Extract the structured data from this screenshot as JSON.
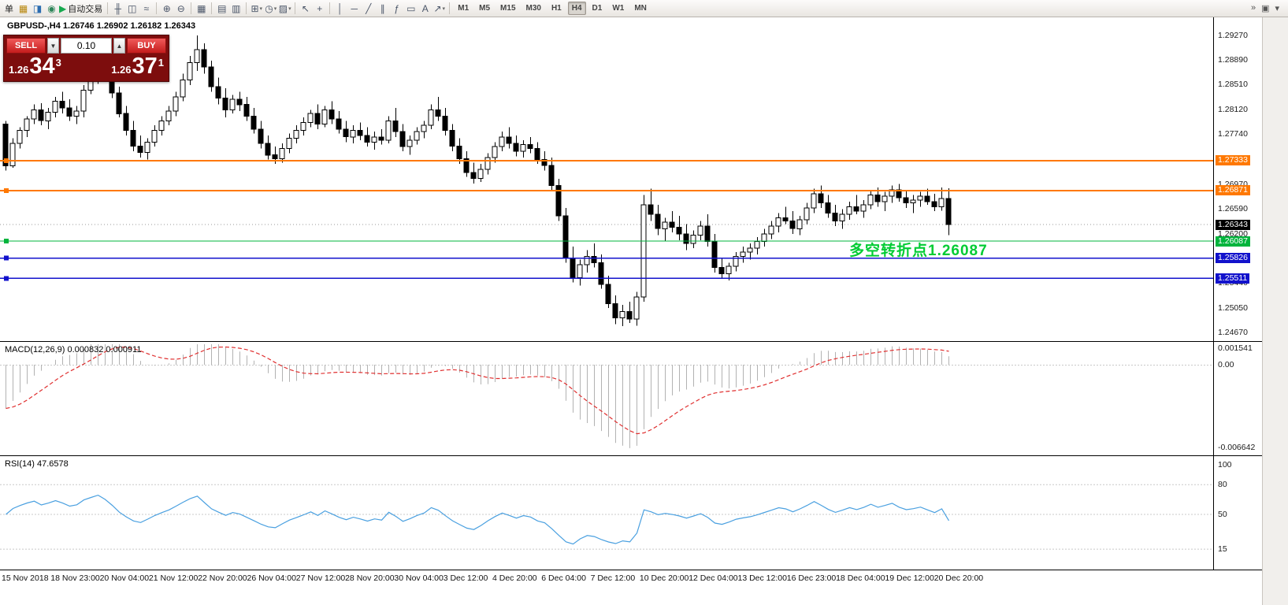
{
  "toolbar": {
    "dropdown_glyph": "▾",
    "items": [
      {
        "name": "new-order-button",
        "label": "单"
      },
      {
        "name": "chart-window-icon",
        "glyph": "▦",
        "glyph_color": "#b8860b"
      },
      {
        "name": "profiles-icon",
        "glyph": "◨",
        "glyph_color": "#2b6cb0"
      },
      {
        "name": "market-watch-icon",
        "glyph": "◉",
        "glyph_color": "#2f855a"
      },
      {
        "name": "autotrading-button",
        "glyph": "▶",
        "glyph_color": "#17a94f",
        "label": "自动交易"
      },
      {
        "sep": true
      },
      {
        "name": "bar-chart-icon",
        "glyph": "╫"
      },
      {
        "name": "candlestick-icon",
        "glyph": "◫"
      },
      {
        "name": "line-chart-icon",
        "glyph": "≈"
      },
      {
        "sep": true
      },
      {
        "name": "zoom-in-icon",
        "glyph": "⊕"
      },
      {
        "name": "zoom-out-icon",
        "glyph": "⊖"
      },
      {
        "sep": true
      },
      {
        "name": "tile-windows-icon",
        "glyph": "▦"
      },
      {
        "sep": true
      },
      {
        "name": "arrange-windows-icon",
        "glyph": "▤"
      },
      {
        "name": "cascade-windows-icon",
        "glyph": "▥"
      },
      {
        "sep": true
      },
      {
        "name": "new-chart-icon",
        "glyph": "⊞",
        "dropdown": true
      },
      {
        "name": "period-icon",
        "glyph": "◷",
        "dropdown": true
      },
      {
        "name": "template-icon",
        "glyph": "▨",
        "dropdown": true
      },
      {
        "sep": true
      },
      {
        "name": "cursor-icon",
        "glyph": "↖"
      },
      {
        "name": "crosshair-icon",
        "glyph": "+"
      },
      {
        "sep": true
      },
      {
        "name": "vertical-line-icon",
        "glyph": "│"
      },
      {
        "name": "horizontal-line-icon",
        "glyph": "─"
      },
      {
        "name": "trendline-icon",
        "glyph": "╱"
      },
      {
        "name": "channel-icon",
        "glyph": "∥"
      },
      {
        "name": "fibonacci-icon",
        "glyph": "ƒ"
      },
      {
        "name": "shapes-icon",
        "glyph": "▭"
      },
      {
        "name": "text-icon",
        "glyph": "A"
      },
      {
        "name": "arrow-tools-icon",
        "glyph": "↗",
        "dropdown": true
      },
      {
        "sep": true
      }
    ],
    "timeframes": [
      {
        "label": "M1"
      },
      {
        "label": "M5"
      },
      {
        "label": "M15"
      },
      {
        "label": "M30"
      },
      {
        "label": "H1"
      },
      {
        "label": "H4",
        "active": true
      },
      {
        "label": "D1"
      },
      {
        "label": "W1"
      },
      {
        "label": "MN"
      }
    ],
    "right_icons": [
      {
        "name": "toolbars-overflow-icon",
        "glyph": "»"
      },
      {
        "name": "dock-window-icon",
        "glyph": "▣"
      },
      {
        "name": "collapse-panel-icon",
        "glyph": "▾"
      }
    ]
  },
  "chart": {
    "title": "GBPUSD-,H4 1.26746 1.26902 1.26182 1.26343",
    "one_click": {
      "sell_label": "SELL",
      "buy_label": "BUY",
      "volume": "0.10",
      "down_glyph": "▼",
      "up_glyph": "▲",
      "sell_price": {
        "prefix": "1.26",
        "big": "34",
        "sup": "3"
      },
      "buy_price": {
        "prefix": "1.26",
        "big": "37",
        "sup": "1"
      }
    },
    "annotation": {
      "text": "多空转折点1.26087",
      "color": "#00cc33"
    }
  },
  "chart_data": {
    "type": "candlestick",
    "symbol": "GBPUSD-",
    "timeframe": "H4",
    "y_range": [
      1.2454,
      1.2955
    ],
    "y_axis_labels": [
      "1.29270",
      "1.28890",
      "1.28510",
      "1.28120",
      "1.27740",
      "1.26970",
      "1.26590",
      "1.26200",
      "1.25440",
      "1.25050",
      "1.24670"
    ],
    "x_labels": [
      "15 Nov 2018",
      "18 Nov 23:00",
      "20 Nov 04:00",
      "21 Nov 12:00",
      "22 Nov 20:00",
      "26 Nov 04:00",
      "27 Nov 12:00",
      "28 Nov 20:00",
      "30 Nov 04:00",
      "3 Dec 12:00",
      "4 Dec 20:00",
      "6 Dec 04:00",
      "7 Dec 12:00",
      "10 Dec 20:00",
      "12 Dec 04:00",
      "13 Dec 12:00",
      "16 Dec 23:00",
      "18 Dec 04:00",
      "19 Dec 12:00",
      "20 Dec 20:00"
    ],
    "horizontal_lines": [
      {
        "price": 1.27333,
        "label": "1.27333",
        "color": "orange",
        "w": 2
      },
      {
        "price": 1.26871,
        "label": "1.26871",
        "color": "orange",
        "w": 2
      },
      {
        "price": 1.26087,
        "label": "1.26087",
        "color": "green",
        "w": 1.3
      },
      {
        "price": 1.25826,
        "label": "1.25826",
        "color": "blue",
        "w": 1.5
      },
      {
        "price": 1.25511,
        "label": "1.25511",
        "color": "blue",
        "w": 1.5
      }
    ],
    "current_price": {
      "price": 1.26343,
      "label": "1.26343",
      "color": "black"
    },
    "colors": {
      "up": "#ffffff",
      "down": "#000000",
      "wick": "#000000",
      "orange": "#ff7800",
      "green": "#00b43c",
      "blue": "#1212cc",
      "black": "#000000",
      "macd_hist": "#b2b2b2",
      "macd_signal": "#e03030",
      "rsi_line": "#4aa0e0",
      "level_line": "#c8c8c8",
      "bid_line": "#9a9a9a"
    },
    "indicators": [
      {
        "type": "MACD",
        "label": "MACD(12,26,9) 0.000832 0.000911",
        "params": [
          12,
          26,
          9
        ],
        "values": [
          0.000832,
          0.000911
        ],
        "axis_labels": [
          "0.001541",
          "0.00",
          "-0.006642"
        ]
      },
      {
        "type": "RSI",
        "label": "RSI(14) 47.6578",
        "params": [
          14
        ],
        "value": 47.6578,
        "axis_labels": [
          "100",
          "80",
          "50",
          "15"
        ],
        "levels": [
          80,
          50,
          15
        ]
      }
    ],
    "ohlc": [
      [
        1.279,
        1.2795,
        1.2718,
        1.2725
      ],
      [
        1.2725,
        1.2768,
        1.2722,
        1.276
      ],
      [
        1.276,
        1.2785,
        1.2752,
        1.278
      ],
      [
        1.278,
        1.2802,
        1.277,
        1.2798
      ],
      [
        1.2798,
        1.282,
        1.279,
        1.2812
      ],
      [
        1.2812,
        1.2822,
        1.2788,
        1.2795
      ],
      [
        1.2795,
        1.2815,
        1.2782,
        1.2808
      ],
      [
        1.2808,
        1.2832,
        1.28,
        1.2825
      ],
      [
        1.2825,
        1.284,
        1.2806,
        1.2815
      ],
      [
        1.2815,
        1.2828,
        1.2795,
        1.2802
      ],
      [
        1.2802,
        1.2818,
        1.279,
        1.281
      ],
      [
        1.281,
        1.285,
        1.28,
        1.2842
      ],
      [
        1.2842,
        1.287,
        1.2836,
        1.286
      ],
      [
        1.286,
        1.2888,
        1.2852,
        1.2878
      ],
      [
        1.2878,
        1.289,
        1.2855,
        1.2862
      ],
      [
        1.2862,
        1.2875,
        1.283,
        1.2838
      ],
      [
        1.2838,
        1.2848,
        1.28,
        1.2806
      ],
      [
        1.2806,
        1.2818,
        1.2772,
        1.278
      ],
      [
        1.278,
        1.2795,
        1.2748,
        1.2756
      ],
      [
        1.2756,
        1.2772,
        1.2738,
        1.2746
      ],
      [
        1.2746,
        1.2768,
        1.2735,
        1.2762
      ],
      [
        1.2762,
        1.2788,
        1.2755,
        1.278
      ],
      [
        1.278,
        1.2802,
        1.2772,
        1.2795
      ],
      [
        1.2795,
        1.2818,
        1.2788,
        1.281
      ],
      [
        1.281,
        1.284,
        1.2802,
        1.2832
      ],
      [
        1.2832,
        1.2868,
        1.2825,
        1.2858
      ],
      [
        1.2858,
        1.2895,
        1.285,
        1.2885
      ],
      [
        1.2885,
        1.2927,
        1.2872,
        1.2905
      ],
      [
        1.2905,
        1.2915,
        1.2868,
        1.2878
      ],
      [
        1.2878,
        1.2888,
        1.284,
        1.2848
      ],
      [
        1.2848,
        1.2862,
        1.282,
        1.283
      ],
      [
        1.283,
        1.2845,
        1.28,
        1.2812
      ],
      [
        1.2812,
        1.2835,
        1.2806,
        1.2828
      ],
      [
        1.2828,
        1.284,
        1.281,
        1.282
      ],
      [
        1.282,
        1.2832,
        1.2795,
        1.2802
      ],
      [
        1.2802,
        1.2815,
        1.2775,
        1.2782
      ],
      [
        1.2782,
        1.2795,
        1.2752,
        1.276
      ],
      [
        1.276,
        1.2772,
        1.2735,
        1.2742
      ],
      [
        1.2742,
        1.2755,
        1.2728,
        1.2736
      ],
      [
        1.2736,
        1.276,
        1.273,
        1.2752
      ],
      [
        1.2752,
        1.2775,
        1.2745,
        1.2768
      ],
      [
        1.2768,
        1.2788,
        1.276,
        1.278
      ],
      [
        1.278,
        1.28,
        1.2772,
        1.2792
      ],
      [
        1.2792,
        1.2812,
        1.2785,
        1.2806
      ],
      [
        1.2806,
        1.282,
        1.2782,
        1.279
      ],
      [
        1.279,
        1.2818,
        1.2785,
        1.2812
      ],
      [
        1.2812,
        1.2825,
        1.279,
        1.2798
      ],
      [
        1.2798,
        1.281,
        1.2775,
        1.2782
      ],
      [
        1.2782,
        1.2795,
        1.2762,
        1.277
      ],
      [
        1.277,
        1.2788,
        1.276,
        1.278
      ],
      [
        1.278,
        1.2792,
        1.2765,
        1.2772
      ],
      [
        1.2772,
        1.2785,
        1.2755,
        1.2762
      ],
      [
        1.2762,
        1.2778,
        1.275,
        1.277
      ],
      [
        1.277,
        1.2782,
        1.2758,
        1.2765
      ],
      [
        1.2765,
        1.2802,
        1.276,
        1.2795
      ],
      [
        1.2795,
        1.2815,
        1.277,
        1.2778
      ],
      [
        1.2778,
        1.279,
        1.2748,
        1.2755
      ],
      [
        1.2755,
        1.2772,
        1.2742,
        1.2765
      ],
      [
        1.2765,
        1.2785,
        1.2758,
        1.2778
      ],
      [
        1.2778,
        1.2795,
        1.2768,
        1.2788
      ],
      [
        1.2788,
        1.282,
        1.2782,
        1.2812
      ],
      [
        1.2812,
        1.2832,
        1.2795,
        1.2802
      ],
      [
        1.2802,
        1.2815,
        1.2772,
        1.278
      ],
      [
        1.278,
        1.279,
        1.2748,
        1.2756
      ],
      [
        1.2756,
        1.2768,
        1.2728,
        1.2736
      ],
      [
        1.2736,
        1.2748,
        1.2708,
        1.2715
      ],
      [
        1.2715,
        1.273,
        1.2698,
        1.2706
      ],
      [
        1.2706,
        1.2728,
        1.27,
        1.272
      ],
      [
        1.272,
        1.2745,
        1.2712,
        1.2738
      ],
      [
        1.2738,
        1.2762,
        1.273,
        1.2755
      ],
      [
        1.2755,
        1.2778,
        1.2748,
        1.277
      ],
      [
        1.277,
        1.2785,
        1.2752,
        1.276
      ],
      [
        1.276,
        1.2772,
        1.274,
        1.2748
      ],
      [
        1.2748,
        1.2765,
        1.2738,
        1.2758
      ],
      [
        1.2758,
        1.277,
        1.2745,
        1.2752
      ],
      [
        1.2752,
        1.2762,
        1.2728,
        1.2735
      ],
      [
        1.2735,
        1.2748,
        1.2718,
        1.2726
      ],
      [
        1.2726,
        1.2738,
        1.2688,
        1.2695
      ],
      [
        1.2695,
        1.2705,
        1.264,
        1.2648
      ],
      [
        1.2648,
        1.266,
        1.2575,
        1.2582
      ],
      [
        1.2582,
        1.26,
        1.2545,
        1.2552
      ],
      [
        1.2552,
        1.258,
        1.254,
        1.2572
      ],
      [
        1.2572,
        1.2595,
        1.256,
        1.2585
      ],
      [
        1.2585,
        1.2605,
        1.2568,
        1.2575
      ],
      [
        1.2575,
        1.2588,
        1.2535,
        1.2542
      ],
      [
        1.2542,
        1.2555,
        1.2505,
        1.2512
      ],
      [
        1.2512,
        1.2525,
        1.248,
        1.249
      ],
      [
        1.249,
        1.251,
        1.2477,
        1.25
      ],
      [
        1.25,
        1.2515,
        1.2482,
        1.2488
      ],
      [
        1.2488,
        1.253,
        1.2478,
        1.2522
      ],
      [
        1.2522,
        1.268,
        1.2515,
        1.2665
      ],
      [
        1.2665,
        1.269,
        1.264,
        1.265
      ],
      [
        1.265,
        1.2665,
        1.2618,
        1.2628
      ],
      [
        1.2628,
        1.2645,
        1.2608,
        1.2638
      ],
      [
        1.2638,
        1.2655,
        1.2622,
        1.263
      ],
      [
        1.263,
        1.2648,
        1.261,
        1.262
      ],
      [
        1.262,
        1.2635,
        1.2595,
        1.2605
      ],
      [
        1.2605,
        1.2625,
        1.2598,
        1.2618
      ],
      [
        1.2618,
        1.264,
        1.261,
        1.2632
      ],
      [
        1.2632,
        1.265,
        1.26,
        1.2608
      ],
      [
        1.2608,
        1.262,
        1.256,
        1.2568
      ],
      [
        1.2568,
        1.2582,
        1.2552,
        1.2558
      ],
      [
        1.2558,
        1.2575,
        1.2548,
        1.257
      ],
      [
        1.257,
        1.2592,
        1.2562,
        1.2585
      ],
      [
        1.2585,
        1.26,
        1.2575,
        1.2592
      ],
      [
        1.2592,
        1.2605,
        1.258,
        1.2598
      ],
      [
        1.2598,
        1.2615,
        1.2588,
        1.2608
      ],
      [
        1.2608,
        1.2628,
        1.26,
        1.262
      ],
      [
        1.262,
        1.264,
        1.2612,
        1.2632
      ],
      [
        1.2632,
        1.2652,
        1.2622,
        1.2645
      ],
      [
        1.2645,
        1.2662,
        1.2635,
        1.264
      ],
      [
        1.264,
        1.2655,
        1.262,
        1.2628
      ],
      [
        1.2628,
        1.2648,
        1.2618,
        1.2642
      ],
      [
        1.2642,
        1.2668,
        1.2635,
        1.266
      ],
      [
        1.266,
        1.269,
        1.2652,
        1.2682
      ],
      [
        1.2682,
        1.2695,
        1.266,
        1.2668
      ],
      [
        1.2668,
        1.268,
        1.2645,
        1.2652
      ],
      [
        1.2652,
        1.2665,
        1.2632,
        1.264
      ],
      [
        1.264,
        1.2658,
        1.2628,
        1.265
      ],
      [
        1.265,
        1.267,
        1.2642,
        1.2662
      ],
      [
        1.2662,
        1.268,
        1.265,
        1.2655
      ],
      [
        1.2655,
        1.2672,
        1.2645,
        1.2665
      ],
      [
        1.2665,
        1.2688,
        1.2658,
        1.268
      ],
      [
        1.268,
        1.2692,
        1.2662,
        1.267
      ],
      [
        1.267,
        1.2685,
        1.2655,
        1.2678
      ],
      [
        1.2678,
        1.2695,
        1.2668,
        1.2688
      ],
      [
        1.2688,
        1.2697,
        1.267,
        1.2676
      ],
      [
        1.2676,
        1.2688,
        1.266,
        1.2668
      ],
      [
        1.2668,
        1.268,
        1.2652,
        1.2672
      ],
      [
        1.2672,
        1.2685,
        1.2662,
        1.2678
      ],
      [
        1.2678,
        1.269,
        1.2665,
        1.267
      ],
      [
        1.267,
        1.2682,
        1.2655,
        1.2662
      ],
      [
        1.2662,
        1.2692,
        1.2656,
        1.26746
      ],
      [
        1.26746,
        1.26902,
        1.26182,
        1.26343
      ]
    ]
  }
}
